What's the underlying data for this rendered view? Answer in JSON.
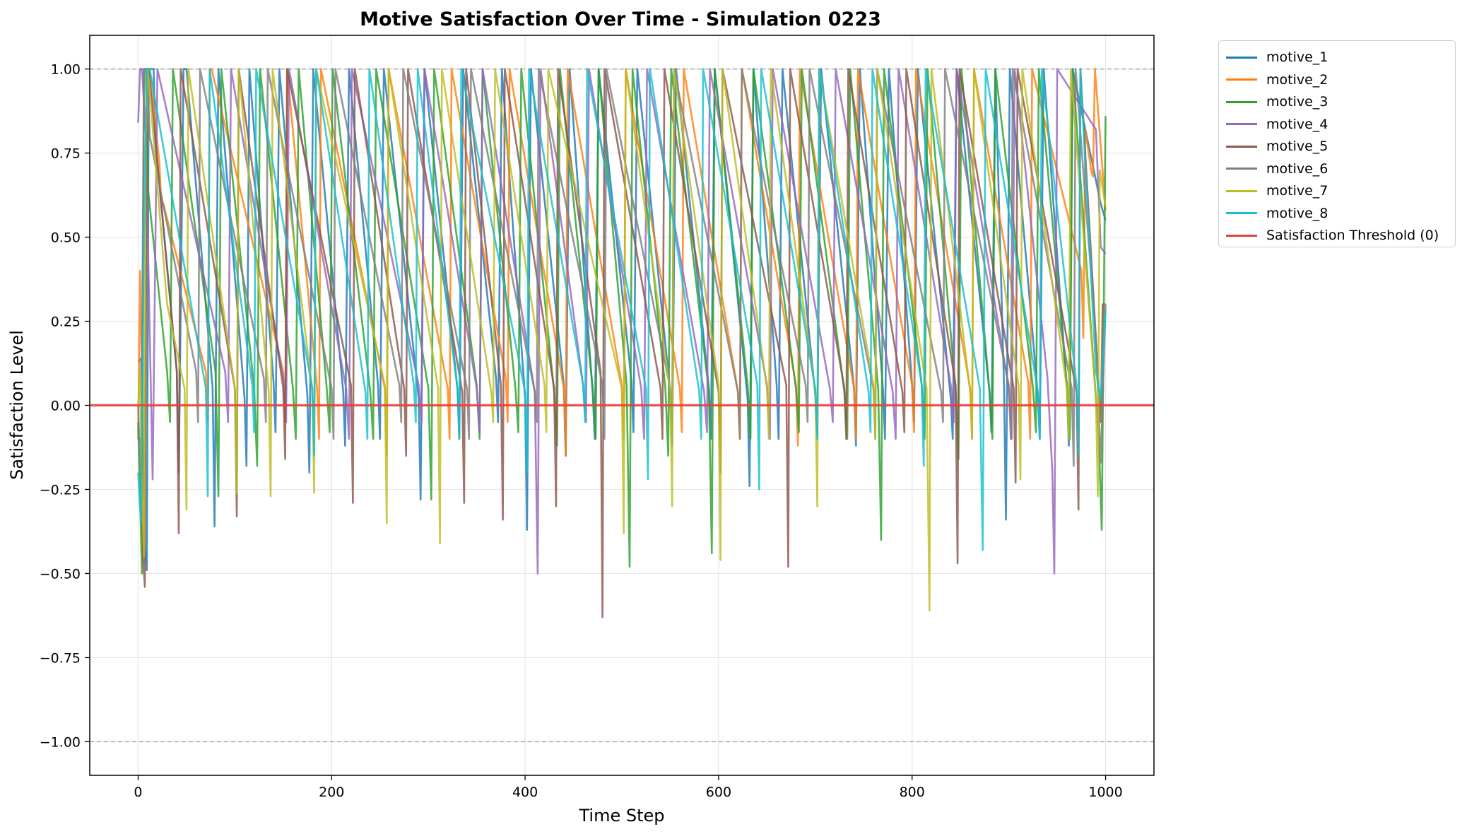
{
  "chart_data": {
    "type": "line",
    "title": "Motive Satisfaction Over Time - Simulation 0223",
    "xlabel": "Time Step",
    "ylabel": "Satisfaction Level",
    "xlim": [
      -50,
      1050
    ],
    "ylim": [
      -1.1,
      1.1
    ],
    "xticks": [
      0,
      200,
      400,
      600,
      800,
      1000
    ],
    "yticks": [
      1.0,
      0.75,
      0.5,
      0.25,
      0.0,
      -0.25,
      -0.5,
      -0.75,
      -1.0
    ],
    "xtick_labels": [
      "0",
      "200",
      "400",
      "600",
      "800",
      "1000"
    ],
    "ytick_labels": [
      "1.00",
      "0.75",
      "0.50",
      "0.25",
      "0.00",
      "−0.25",
      "−0.50",
      "−0.75",
      "−1.00"
    ],
    "grid": true,
    "legend_position": "outside-upper-right",
    "reference_lines": [
      {
        "y": 1.0,
        "style": "dashed",
        "color": "#aaaaaa"
      },
      {
        "y": -1.0,
        "style": "dashed",
        "color": "#aaaaaa"
      }
    ],
    "threshold": {
      "name": "Satisfaction Threshold (0)",
      "y": 0,
      "color": "#e8413c"
    },
    "series": [
      {
        "name": "motive_1",
        "color": "#1f77b4",
        "x": [
          0,
          3,
          5,
          9,
          11,
          16,
          18,
          40,
          42,
          47,
          50,
          77,
          79,
          83,
          110,
          112,
          115,
          140,
          142,
          146,
          175,
          177,
          181,
          212,
          214,
          218,
          248,
          250,
          254,
          290,
          292,
          296,
          330,
          332,
          336,
          370,
          372,
          376,
          400,
          402,
          406,
          440,
          442,
          446,
          470,
          472,
          476,
          510,
          512,
          516,
          550,
          552,
          556,
          590,
          592,
          596,
          630,
          632,
          636,
          660,
          662,
          666,
          700,
          702,
          706,
          740,
          742,
          746,
          770,
          772,
          776,
          800,
          802,
          806,
          840,
          842,
          846,
          880,
          882,
          886,
          895,
          897,
          901,
          930,
          932,
          936,
          960,
          962,
          966,
          995,
          997,
          1000
        ],
        "y": [
          0.13,
          0.14,
          -0.38,
          -0.49,
          1.0,
          1.0,
          0.78,
          0.1,
          -0.2,
          1.0,
          1.0,
          0.05,
          -0.36,
          1.0,
          0.02,
          -0.18,
          1.0,
          0.07,
          -0.08,
          1.0,
          0.03,
          -0.2,
          1.0,
          0.04,
          -0.12,
          1.0,
          0.06,
          -0.1,
          1.0,
          0.02,
          -0.28,
          1.0,
          0.05,
          -0.1,
          1.0,
          0.08,
          -0.05,
          1.0,
          0.02,
          -0.37,
          1.0,
          0.06,
          -0.15,
          1.0,
          0.03,
          -0.1,
          1.0,
          0.07,
          -0.08,
          1.0,
          0.04,
          -0.12,
          1.0,
          0.05,
          -0.1,
          1.0,
          0.02,
          -0.24,
          1.0,
          0.06,
          -0.1,
          1.0,
          0.03,
          -0.08,
          1.0,
          0.05,
          -0.12,
          1.0,
          0.04,
          -0.1,
          1.0,
          0.06,
          -0.05,
          1.0,
          0.02,
          -0.1,
          1.0,
          0.04,
          -0.08,
          1.0,
          0.06,
          -0.34,
          1.0,
          0.03,
          -0.1,
          1.0,
          0.05,
          -0.12,
          1.0,
          0.6,
          0.58,
          0.55
        ]
      },
      {
        "name": "motive_2",
        "color": "#ff7f0e",
        "x": [
          0,
          2,
          4,
          6,
          8,
          10,
          12,
          22,
          24,
          26,
          70,
          72,
          74,
          76,
          150,
          152,
          154,
          185,
          187,
          189,
          255,
          257,
          259,
          320,
          322,
          324,
          380,
          382,
          384,
          440,
          442,
          444,
          500,
          502,
          504,
          560,
          562,
          564,
          620,
          622,
          624,
          680,
          682,
          684,
          740,
          742,
          744,
          800,
          802,
          804,
          860,
          862,
          864,
          920,
          922,
          924,
          975,
          977,
          979,
          985,
          987,
          989,
          1000
        ],
        "y": [
          -0.1,
          0.4,
          0.1,
          -0.45,
          0.3,
          1.0,
          1.0,
          0.72,
          0.6,
          0.6,
          0.1,
          -0.05,
          1.0,
          1.0,
          0.1,
          -0.05,
          1.0,
          0.05,
          -0.1,
          1.0,
          0.05,
          -0.15,
          1.0,
          0.05,
          -0.1,
          1.0,
          0.08,
          -0.05,
          1.0,
          0.05,
          -0.15,
          1.0,
          0.06,
          -0.1,
          1.0,
          0.05,
          -0.08,
          1.0,
          0.04,
          -0.1,
          1.0,
          0.06,
          -0.12,
          1.0,
          0.05,
          -0.1,
          1.0,
          0.06,
          -0.08,
          1.0,
          0.05,
          -0.1,
          1.0,
          0.07,
          -0.1,
          1.0,
          0.4,
          0.2,
          0.82,
          0.7,
          0.68,
          1.0,
          0.58
        ]
      },
      {
        "name": "motive_3",
        "color": "#2ca02c",
        "x": [
          0,
          4,
          6,
          8,
          10,
          30,
          33,
          36,
          80,
          83,
          86,
          120,
          123,
          126,
          160,
          163,
          166,
          195,
          198,
          201,
          240,
          243,
          246,
          300,
          303,
          306,
          350,
          353,
          356,
          390,
          393,
          396,
          430,
          433,
          436,
          470,
          473,
          476,
          505,
          508,
          511,
          545,
          548,
          551,
          590,
          593,
          596,
          630,
          633,
          636,
          680,
          683,
          686,
          730,
          733,
          736,
          765,
          768,
          771,
          810,
          813,
          816,
          845,
          848,
          851,
          880,
          883,
          886,
          925,
          928,
          931,
          960,
          963,
          966,
          993,
          996,
          1000
        ],
        "y": [
          -0.05,
          -0.5,
          1.0,
          1.0,
          0.65,
          0.1,
          -0.05,
          1.0,
          0.1,
          -0.27,
          1.0,
          0.05,
          -0.18,
          1.0,
          0.05,
          -0.1,
          1.0,
          0.05,
          -0.08,
          1.0,
          0.04,
          -0.1,
          1.0,
          0.05,
          -0.28,
          1.0,
          0.06,
          -0.1,
          1.0,
          0.05,
          -0.08,
          1.0,
          0.04,
          -0.12,
          1.0,
          0.05,
          -0.1,
          1.0,
          0.06,
          -0.48,
          1.0,
          0.05,
          -0.15,
          1.0,
          0.04,
          -0.44,
          1.0,
          0.06,
          -0.1,
          1.0,
          0.05,
          -0.08,
          1.0,
          0.04,
          -0.1,
          1.0,
          0.05,
          -0.4,
          1.0,
          0.06,
          -0.1,
          1.0,
          0.05,
          -0.16,
          1.0,
          0.04,
          -0.1,
          1.0,
          0.05,
          -0.08,
          1.0,
          0.06,
          -0.1,
          1.0,
          -0.1,
          -0.37,
          0.86
        ]
      },
      {
        "name": "motive_4",
        "color": "#9467bd",
        "x": [
          0,
          2,
          4,
          8,
          15,
          20,
          90,
          93,
          96,
          150,
          153,
          156,
          215,
          218,
          221,
          290,
          293,
          296,
          350,
          353,
          356,
          410,
          413,
          416,
          460,
          463,
          466,
          520,
          523,
          526,
          585,
          588,
          591,
          650,
          653,
          656,
          715,
          718,
          721,
          780,
          783,
          786,
          840,
          843,
          846,
          900,
          903,
          906,
          940,
          945,
          947,
          950,
          990,
          995,
          1000
        ],
        "y": [
          0.84,
          1.0,
          1.0,
          0.8,
          -0.22,
          1.0,
          0.1,
          -0.05,
          1.0,
          0.08,
          -0.05,
          1.0,
          0.05,
          -0.1,
          1.0,
          0.06,
          -0.05,
          1.0,
          0.05,
          -0.08,
          1.0,
          0.04,
          -0.5,
          1.0,
          0.06,
          -0.05,
          1.0,
          0.05,
          -0.1,
          1.0,
          0.04,
          -0.08,
          1.0,
          0.06,
          -0.1,
          1.0,
          0.05,
          -0.05,
          1.0,
          0.04,
          -0.1,
          1.0,
          0.06,
          -0.05,
          1.0,
          0.05,
          -0.1,
          1.0,
          0.08,
          -0.2,
          -0.5,
          1.0,
          0.82,
          0.47,
          0.45
        ]
      },
      {
        "name": "motive_5",
        "color": "#8c564b",
        "x": [
          0,
          3,
          5,
          7,
          9,
          11,
          40,
          42,
          44,
          100,
          102,
          104,
          150,
          152,
          154,
          220,
          222,
          224,
          275,
          277,
          279,
          335,
          337,
          339,
          375,
          377,
          379,
          430,
          432,
          434,
          478,
          480,
          482,
          540,
          542,
          544,
          600,
          602,
          604,
          670,
          672,
          674,
          730,
          732,
          734,
          790,
          792,
          794,
          845,
          847,
          849,
          905,
          907,
          909,
          970,
          972,
          974,
          995,
          997,
          1000
        ],
        "y": [
          -0.1,
          -0.1,
          -0.45,
          -0.54,
          1.0,
          1.0,
          0.1,
          -0.38,
          1.0,
          0.05,
          -0.33,
          1.0,
          0.05,
          -0.16,
          1.0,
          0.06,
          -0.29,
          1.0,
          0.05,
          -0.15,
          1.0,
          0.04,
          -0.29,
          1.0,
          0.06,
          -0.34,
          1.0,
          0.05,
          -0.3,
          1.0,
          0.1,
          -0.63,
          1.0,
          0.05,
          -0.1,
          1.0,
          0.04,
          -0.2,
          1.0,
          0.06,
          -0.48,
          1.0,
          0.05,
          -0.1,
          1.0,
          0.04,
          -0.08,
          1.0,
          0.06,
          -0.47,
          1.0,
          0.05,
          -0.23,
          1.0,
          0.04,
          -0.31,
          1.0,
          -0.05,
          0.3,
          0.3
        ]
      },
      {
        "name": "motive_6",
        "color": "#7f7f7f",
        "x": [
          0,
          3,
          6,
          9,
          12,
          60,
          62,
          64,
          130,
          132,
          134,
          200,
          202,
          204,
          270,
          272,
          274,
          340,
          342,
          344,
          410,
          412,
          414,
          480,
          482,
          484,
          550,
          552,
          554,
          620,
          622,
          624,
          690,
          692,
          694,
          760,
          762,
          764,
          830,
          832,
          834,
          900,
          902,
          904,
          965,
          967,
          969,
          990,
          995,
          1000
        ],
        "y": [
          0.0,
          -0.25,
          1.0,
          1.0,
          0.8,
          0.1,
          -0.05,
          1.0,
          0.08,
          -0.05,
          1.0,
          0.05,
          -0.1,
          1.0,
          0.06,
          -0.05,
          1.0,
          0.05,
          -0.1,
          1.0,
          0.04,
          -0.05,
          1.0,
          0.06,
          -0.1,
          1.0,
          0.05,
          -0.05,
          1.0,
          0.04,
          -0.1,
          1.0,
          0.06,
          -0.05,
          1.0,
          0.05,
          -0.1,
          1.0,
          0.04,
          -0.05,
          1.0,
          0.06,
          -0.1,
          1.0,
          0.05,
          -0.18,
          1.0,
          0.2,
          -0.17,
          0.3
        ]
      },
      {
        "name": "motive_7",
        "color": "#bcbd22",
        "x": [
          0,
          2,
          4,
          6,
          8,
          10,
          30,
          48,
          50,
          52,
          100,
          102,
          104,
          135,
          137,
          139,
          180,
          182,
          184,
          255,
          257,
          259,
          310,
          312,
          314,
          365,
          367,
          369,
          420,
          422,
          424,
          500,
          502,
          504,
          550,
          552,
          554,
          600,
          602,
          604,
          650,
          652,
          654,
          700,
          702,
          704,
          760,
          762,
          764,
          815,
          818,
          820,
          860,
          862,
          864,
          910,
          912,
          914,
          960,
          962,
          964,
          990,
          992,
          994,
          1000
        ],
        "y": [
          0.0,
          0.1,
          -0.25,
          -0.45,
          0.8,
          1.0,
          0.3,
          0.05,
          -0.31,
          1.0,
          0.05,
          -0.26,
          1.0,
          0.04,
          -0.27,
          1.0,
          0.05,
          -0.26,
          1.0,
          0.06,
          -0.35,
          1.0,
          0.05,
          -0.41,
          1.0,
          0.04,
          -0.05,
          1.0,
          0.06,
          -0.08,
          1.0,
          0.05,
          -0.38,
          1.0,
          0.04,
          -0.3,
          1.0,
          0.06,
          -0.46,
          1.0,
          0.05,
          -0.1,
          1.0,
          0.04,
          -0.3,
          1.0,
          0.06,
          -0.1,
          1.0,
          0.05,
          -0.61,
          1.0,
          0.04,
          -0.1,
          1.0,
          0.06,
          -0.22,
          1.0,
          0.05,
          -0.1,
          1.0,
          0.02,
          -0.27,
          0.7,
          0.59
        ]
      },
      {
        "name": "motive_8",
        "color": "#17becf",
        "x": [
          0,
          3,
          6,
          9,
          12,
          15,
          70,
          72,
          74,
          118,
          120,
          122,
          180,
          182,
          184,
          235,
          237,
          239,
          285,
          287,
          289,
          330,
          332,
          334,
          400,
          402,
          404,
          460,
          462,
          464,
          525,
          527,
          529,
          580,
          582,
          584,
          640,
          642,
          644,
          700,
          702,
          704,
          755,
          757,
          759,
          810,
          812,
          814,
          870,
          873,
          876,
          930,
          932,
          934,
          970,
          972,
          974,
          990,
          995,
          1000
        ],
        "y": [
          -0.2,
          -0.35,
          0.5,
          1.0,
          1.0,
          0.95,
          0.05,
          -0.27,
          1.0,
          0.06,
          -0.08,
          1.0,
          0.05,
          -0.15,
          1.0,
          0.04,
          -0.1,
          1.0,
          0.06,
          -0.05,
          1.0,
          0.05,
          -0.1,
          1.0,
          0.04,
          -0.2,
          1.0,
          0.06,
          -0.05,
          1.0,
          0.05,
          -0.22,
          1.0,
          0.04,
          -0.1,
          1.0,
          0.06,
          -0.25,
          1.0,
          0.05,
          -0.1,
          1.0,
          0.04,
          -0.08,
          1.0,
          0.06,
          -0.18,
          1.0,
          0.05,
          -0.43,
          1.0,
          0.04,
          -0.1,
          1.0,
          0.06,
          -0.15,
          1.0,
          0.1,
          0.02,
          0.28
        ]
      }
    ]
  }
}
